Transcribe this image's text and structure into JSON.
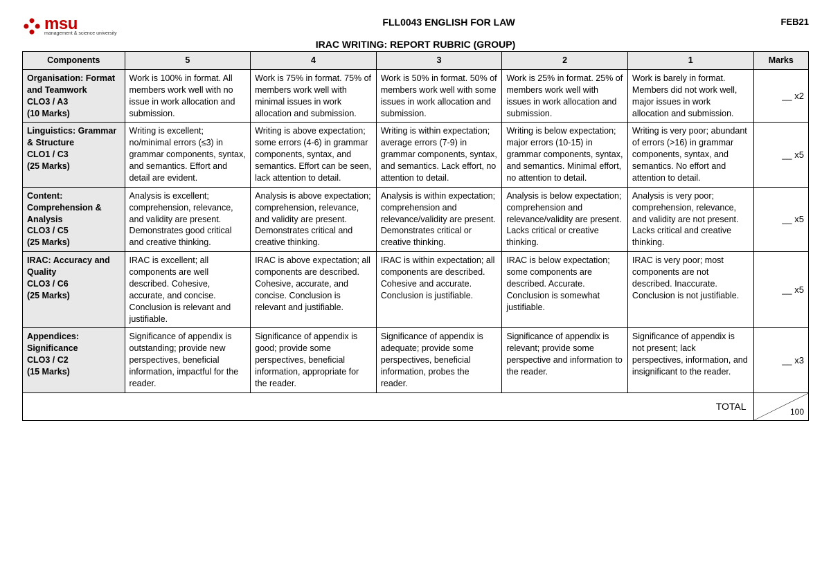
{
  "header": {
    "logo": {
      "main": "msu",
      "sub": "management & science university",
      "icon_color": "#c00000"
    },
    "course": "FLL0043 ENGLISH FOR LAW",
    "subtitle": "IRAC WRITING: REPORT RUBRIC (GROUP)",
    "date": "FEB21"
  },
  "columns": [
    "Components",
    "5",
    "4",
    "3",
    "2",
    "1",
    "Marks"
  ],
  "rows": [
    {
      "component": "Organisation: Format and Teamwork\nCLO3 / A3\n(10 Marks)",
      "c5": "Work is 100% in format. All members work well with no issue in work allocation and submission.",
      "c4": "Work is 75% in format. 75% of members work well with minimal issues in work allocation and submission.",
      "c3": "Work is 50% in format. 50% of members work well with some issues in work allocation and submission.",
      "c2": "Work is 25% in format. 25% of members work well with issues in work allocation and submission.",
      "c1": "Work is barely in format. Members did not work well, major issues in work allocation and submission.",
      "marks": "__ x2"
    },
    {
      "component": "Linguistics: Grammar & Structure\nCLO1 / C3\n(25 Marks)",
      "c5": "Writing is excellent; no/minimal errors (≤3) in grammar components, syntax, and semantics. Effort and detail are evident.",
      "c4": "Writing is above expectation; some errors (4-6) in grammar components, syntax, and semantics. Effort can be seen, lack attention to detail.",
      "c3": "Writing is within expectation; average errors (7-9) in grammar components, syntax, and semantics. Lack effort, no attention to detail.",
      "c2": "Writing is below expectation; major errors (10-15) in grammar components, syntax, and semantics. Minimal effort, no attention to detail.",
      "c1": "Writing is very poor; abundant of errors (>16) in grammar components, syntax, and semantics. No effort and attention to detail.",
      "marks": "__ x5"
    },
    {
      "component": "Content: Comprehension & Analysis\nCLO3 / C5\n(25 Marks)",
      "c5": "Analysis is excellent; comprehension, relevance, and validity are present. Demonstrates good critical and creative thinking.",
      "c4": "Analysis is above expectation; comprehension, relevance, and validity are present. Demonstrates critical and creative thinking.",
      "c3": "Analysis is within expectation; comprehension and relevance/validity are present. Demonstrates critical or creative thinking.",
      "c2": "Analysis is below expectation; comprehension and relevance/validity are present. Lacks critical or creative thinking.",
      "c1": "Analysis is very poor; comprehension, relevance, and validity are not present. Lacks critical and creative thinking.",
      "marks": "__ x5"
    },
    {
      "component": "IRAC: Accuracy and Quality\nCLO3 / C6\n(25 Marks)",
      "c5": "IRAC is excellent; all components are well described. Cohesive, accurate, and concise. Conclusion is relevant and justifiable.",
      "c4": "IRAC is above expectation; all components are described. Cohesive, accurate, and concise. Conclusion is relevant and justifiable.",
      "c3": "IRAC is within expectation; all components are described. Cohesive and accurate. Conclusion is justifiable.",
      "c2": "IRAC is below expectation; some components are described. Accurate. Conclusion is somewhat justifiable.",
      "c1": "IRAC is very poor; most components are not described. Inaccurate. Conclusion is not justifiable.",
      "marks": "__ x5"
    },
    {
      "component": "Appendices: Significance\nCLO3 / C2\n(15 Marks)",
      "c5": "Significance of appendix is outstanding; provide new perspectives, beneficial information, impactful for the reader.",
      "c4": "Significance of appendix is good; provide some perspectives, beneficial information, appropriate for the reader.",
      "c3": "Significance of appendix is adequate; provide some perspectives, beneficial information, probes the reader.",
      "c2": "Significance of appendix is relevant; provide some perspective and information to the reader.",
      "c1": "Significance of appendix is not present; lack perspectives, information, and insignificant to the reader.",
      "marks": "__ x3"
    }
  ],
  "total": {
    "label": "TOTAL",
    "denominator": "100"
  },
  "styling": {
    "header_bg": "#e8e8e8",
    "border_color": "#000000",
    "body_font_size": 12.5,
    "title_font_size": 14
  }
}
